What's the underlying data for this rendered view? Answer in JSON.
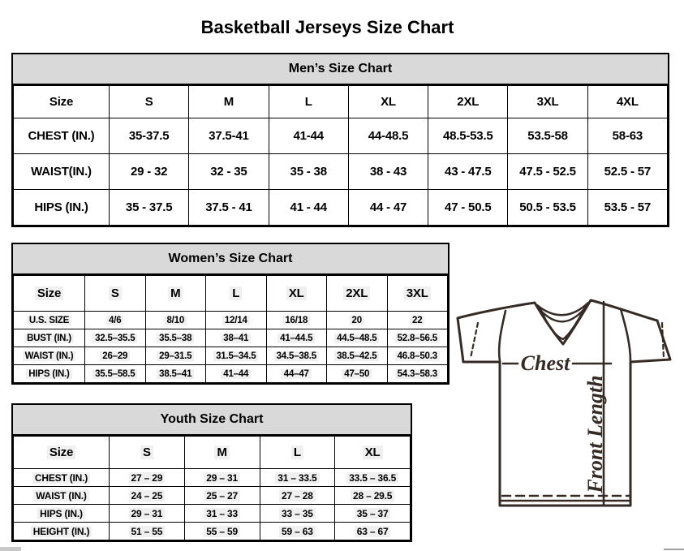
{
  "page_title": "Basketball Jerseys Size Chart",
  "tables": {
    "men": {
      "title": "Men’s Size Chart",
      "columns": [
        "Size",
        "S",
        "M",
        "L",
        "XL",
        "2XL",
        "3XL",
        "4XL"
      ],
      "rows": [
        {
          "label": "CHEST (IN.)",
          "values": [
            "35-37.5",
            "37.5-41",
            "41-44",
            "44-48.5",
            "48.5-53.5",
            "53.5-58",
            "58-63"
          ]
        },
        {
          "label": "WAIST(IN.)",
          "values": [
            "29 - 32",
            "32 - 35",
            "35 - 38",
            "38 - 43",
            "43 - 47.5",
            "47.5 - 52.5",
            "52.5 - 57"
          ]
        },
        {
          "label": "HIPS (IN.)",
          "values": [
            "35 - 37.5",
            "37.5 - 41",
            "41 - 44",
            "44 - 47",
            "47 - 50.5",
            "50.5 - 53.5",
            "53.5 - 57"
          ]
        }
      ]
    },
    "women": {
      "title": "Women’s Size Chart",
      "columns": [
        "Size",
        "S",
        "M",
        "L",
        "XL",
        "2XL",
        "3XL"
      ],
      "rows": [
        {
          "label": "U.S. SIZE",
          "values": [
            "4/6",
            "8/10",
            "12/14",
            "16/18",
            "20",
            "22"
          ]
        },
        {
          "label": "BUST (IN.)",
          "values": [
            "32.5–35.5",
            "35.5–38",
            "38–41",
            "41–44.5",
            "44.5–48.5",
            "52.8–56.5"
          ]
        },
        {
          "label": "WAIST (IN.)",
          "values": [
            "26–29",
            "29–31.5",
            "31.5–34.5",
            "34.5–38.5",
            "38.5–42.5",
            "46.8–50.3"
          ]
        },
        {
          "label": "HIPS (IN.)",
          "values": [
            "35.5–58.5",
            "38.5–41",
            "41–44",
            "44–47",
            "47–50",
            "54.3–58.3"
          ]
        }
      ]
    },
    "youth": {
      "title": "Youth Size Chart",
      "columns": [
        "Size",
        "S",
        "M",
        "L",
        "XL"
      ],
      "rows": [
        {
          "label": "CHEST (IN.)",
          "values": [
            "27 – 29",
            "29 – 31",
            "31 – 33.5",
            "33.5 – 36.5"
          ]
        },
        {
          "label": "WAIST (IN.)",
          "values": [
            "24 – 25",
            "25 – 27",
            "27 – 28",
            "28 – 29.5"
          ]
        },
        {
          "label": "HIPS (IN.)",
          "values": [
            "29 – 31",
            "31 – 33",
            "33 – 35",
            "35 – 37"
          ]
        },
        {
          "label": "HEIGHT (IN.)",
          "values": [
            "51 – 55",
            "55 – 59",
            "59 – 63",
            "63 – 67"
          ]
        }
      ]
    }
  },
  "diagram": {
    "chest_label": "Chest",
    "front_length_label": "Front Length"
  },
  "colors": {
    "table_header_bg": "#d9d9d9",
    "table_border": "#000000",
    "cell_highlight": "#f0f0f0",
    "diagram_stroke": "#352b24",
    "page_bg": "#ffffff"
  }
}
